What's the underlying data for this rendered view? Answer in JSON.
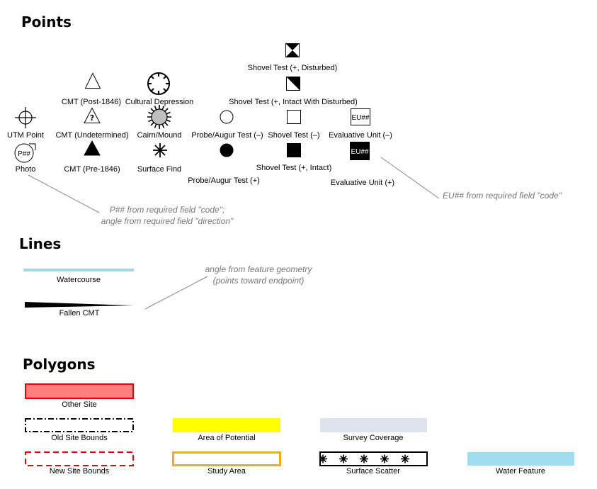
{
  "headings": {
    "points": "Points",
    "lines": "Lines",
    "polygons": "Polygons"
  },
  "points": {
    "shovel_test_disturbed": "Shovel Test (+, Disturbed)",
    "shovel_test_intact_disturbed": "Shovel Test (+, Intact With Disturbed)",
    "cmt_post_1846": "CMT (Post-1846)",
    "cultural_depression": "Cultural Depression",
    "utm_point": "UTM Point",
    "cmt_undetermined": "CMT (Undetermined)",
    "cmt_undetermined_glyph": "?",
    "cairn_mound": "Cairn/Mound",
    "probe_augur_negative": "Probe/Augur Test (–)",
    "shovel_test_negative": "Shovel Test (–)",
    "evaluative_unit_negative": "Evaluative Unit (–)",
    "photo": "Photo",
    "photo_symbol_text": "P##",
    "cmt_pre_1846": "CMT (Pre-1846)",
    "surface_find": "Surface Find",
    "probe_augur_positive": "Probe/Augur Test (+)",
    "shovel_test_intact": "Shovel Test (+, Intact)",
    "evaluative_unit_positive": "Evaluative Unit (+)",
    "eu_symbol_text": "EU##"
  },
  "notes": {
    "photo_line1": "P## from required field \"code\";",
    "photo_line2": "angle from required field \"direction\"",
    "eu": "EU## from required field \"code\"",
    "lines_line1": "angle from feature geometry",
    "lines_line2": "(points toward endpoint)"
  },
  "lines": {
    "watercourse": "Watercourse",
    "fallen_cmt": "Fallen CMT"
  },
  "polygons": {
    "other_site": "Other Site",
    "old_site_bounds": "Old Site Bounds",
    "new_site_bounds": "New Site Bounds",
    "area_of_potential": "Area of Potential",
    "study_area": "Study Area",
    "survey_coverage": "Survey Coverage",
    "surface_scatter": "Surface Scatter",
    "water_feature": "Water Feature"
  },
  "colors": {
    "watercourse": "#a6d7e8",
    "other_site_fill": "#ff7f7f",
    "other_site_stroke": "#e8000b",
    "new_site_stroke": "#e8000b",
    "area_of_potential": "#ffff00",
    "study_area_stroke": "#ffaa00",
    "survey_coverage": "#dfe3ee",
    "water_feature": "#9fdcf0",
    "cairn_fill": "#bfbfbf",
    "note_text": "#777777"
  }
}
